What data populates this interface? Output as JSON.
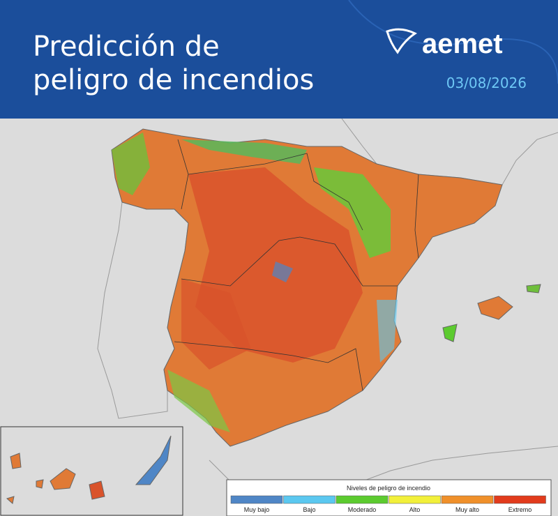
{
  "header": {
    "title_lines": [
      "Predicción de",
      "peligro de incendios"
    ],
    "logo": "aemet",
    "date": "03/08/2026"
  },
  "legend": {
    "title": "Niveles de peligro de incendio",
    "levels": [
      {
        "label": "Muy bajo",
        "color": "#4f86c6"
      },
      {
        "label": "Bajo",
        "color": "#5bc8f0"
      },
      {
        "label": "Moderado",
        "color": "#5ccb2f"
      },
      {
        "label": "Alto",
        "color": "#f2f03a"
      },
      {
        "label": "Muy alto",
        "color": "#f0902a"
      },
      {
        "label": "Extremo",
        "color": "#e23b1c"
      }
    ]
  }
}
